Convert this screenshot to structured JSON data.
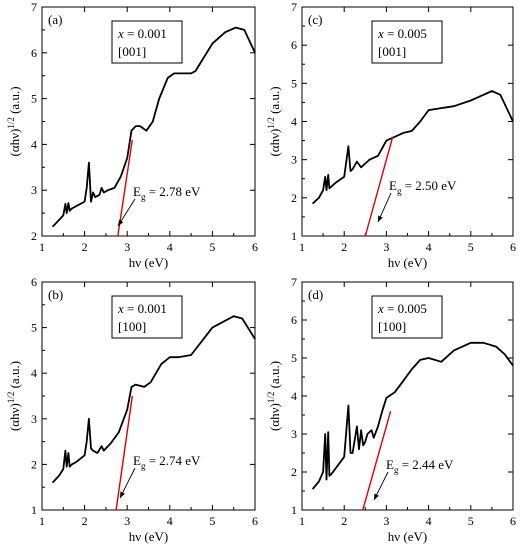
{
  "chart_data": [
    {
      "type": "line",
      "panel_label": "(a)",
      "composition": "x = 0.001",
      "direction": "[001]",
      "xlabel": "hν  (eV)",
      "ylabel": "(αhν)^1/2 (a.u.)",
      "xlim": [
        1,
        6
      ],
      "ylim": [
        2,
        7
      ],
      "xticks": [
        1,
        2,
        3,
        4,
        5,
        6
      ],
      "yticks": [
        2,
        3,
        4,
        5,
        6,
        7
      ],
      "eg_label": "E_g = 2.78 eV",
      "eg_value": 2.78,
      "fit_line": {
        "x": [
          2.78,
          3.12
        ],
        "y": [
          2.0,
          4.1
        ]
      },
      "series": [
        {
          "x": [
            1.25,
            1.4,
            1.5,
            1.55,
            1.58,
            1.62,
            1.65,
            1.68,
            1.7,
            1.8,
            2.0,
            2.05,
            2.1,
            2.15,
            2.2,
            2.25,
            2.35,
            2.4,
            2.45,
            2.55,
            2.7,
            2.85,
            3.0,
            3.1,
            3.2,
            3.3,
            3.45,
            3.6,
            3.75,
            3.95,
            4.1,
            4.5,
            4.6,
            4.8,
            5.0,
            5.3,
            5.55,
            5.75,
            6.0
          ],
          "y": [
            2.2,
            2.35,
            2.45,
            2.7,
            2.5,
            2.72,
            2.55,
            2.58,
            2.6,
            2.65,
            2.75,
            3.05,
            3.6,
            2.75,
            2.95,
            2.85,
            2.9,
            3.05,
            2.95,
            3.0,
            3.05,
            3.3,
            3.7,
            4.3,
            4.4,
            4.4,
            4.3,
            4.5,
            5.0,
            5.45,
            5.55,
            5.55,
            5.6,
            5.9,
            6.2,
            6.45,
            6.55,
            6.5,
            6.0
          ]
        }
      ]
    },
    {
      "type": "line",
      "panel_label": "(c)",
      "composition": "x = 0.005",
      "direction": "[001]",
      "xlabel": "hν  (eV)",
      "ylabel": "(αhν)^1/2 (a.u.)",
      "xlim": [
        1,
        6
      ],
      "ylim": [
        1,
        7
      ],
      "xticks": [
        1,
        2,
        3,
        4,
        5,
        6
      ],
      "yticks": [
        1,
        2,
        3,
        4,
        5,
        6,
        7
      ],
      "eg_label": "E_g = 2.50 eV",
      "eg_value": 2.5,
      "fit_line": {
        "x": [
          2.5,
          3.15
        ],
        "y": [
          1.0,
          3.6
        ]
      },
      "series": [
        {
          "x": [
            1.25,
            1.4,
            1.5,
            1.55,
            1.58,
            1.62,
            1.65,
            1.7,
            1.8,
            2.0,
            2.1,
            2.15,
            2.2,
            2.3,
            2.4,
            2.5,
            2.6,
            2.8,
            3.0,
            3.2,
            3.4,
            3.6,
            3.8,
            4.0,
            4.3,
            4.6,
            5.0,
            5.3,
            5.5,
            5.7,
            6.0
          ],
          "y": [
            1.85,
            2.0,
            2.2,
            2.55,
            2.2,
            2.6,
            2.25,
            2.3,
            2.4,
            2.55,
            3.35,
            2.7,
            2.75,
            2.95,
            2.8,
            2.9,
            3.0,
            3.1,
            3.5,
            3.6,
            3.7,
            3.75,
            4.0,
            4.3,
            4.35,
            4.4,
            4.55,
            4.7,
            4.8,
            4.7,
            4.0
          ]
        }
      ]
    },
    {
      "type": "line",
      "panel_label": "(b)",
      "composition": "x = 0.001",
      "direction": "[100]",
      "xlabel": "hν  (eV)",
      "ylabel": "(αhν)^1/2 (a.u.)",
      "xlim": [
        1,
        6
      ],
      "ylim": [
        1,
        6
      ],
      "xticks": [
        1,
        2,
        3,
        4,
        5,
        6
      ],
      "yticks": [
        1,
        2,
        3,
        4,
        5,
        6
      ],
      "eg_label": "E_g = 2.74 eV",
      "eg_value": 2.74,
      "fit_line": {
        "x": [
          2.74,
          3.12
        ],
        "y": [
          1.0,
          3.5
        ]
      },
      "series": [
        {
          "x": [
            1.25,
            1.4,
            1.5,
            1.55,
            1.58,
            1.62,
            1.65,
            1.7,
            1.8,
            2.0,
            2.05,
            2.1,
            2.15,
            2.2,
            2.3,
            2.4,
            2.45,
            2.5,
            2.6,
            2.8,
            3.0,
            3.1,
            3.2,
            3.4,
            3.55,
            3.8,
            4.0,
            4.2,
            4.5,
            5.0,
            5.5,
            5.7,
            6.0
          ],
          "y": [
            1.6,
            1.75,
            1.9,
            2.3,
            1.95,
            2.25,
            1.95,
            2.0,
            2.05,
            2.2,
            2.5,
            3.0,
            2.35,
            2.3,
            2.25,
            2.4,
            2.3,
            2.35,
            2.45,
            2.7,
            3.2,
            3.7,
            3.75,
            3.7,
            3.8,
            4.2,
            4.35,
            4.35,
            4.4,
            5.0,
            5.25,
            5.2,
            4.75
          ]
        }
      ]
    },
    {
      "type": "line",
      "panel_label": "(d)",
      "composition": "x = 0.005",
      "direction": "[100]",
      "xlabel": "hν  (eV)",
      "ylabel": "(αhν)^1/2 (a.u.)",
      "xlim": [
        1,
        6
      ],
      "ylim": [
        1,
        7
      ],
      "xticks": [
        1,
        2,
        3,
        4,
        5,
        6
      ],
      "yticks": [
        1,
        2,
        3,
        4,
        5,
        6,
        7
      ],
      "eg_label": "E_g = 2.44 eV",
      "eg_value": 2.44,
      "fit_line": {
        "x": [
          2.44,
          3.1
        ],
        "y": [
          1.0,
          3.6
        ]
      },
      "series": [
        {
          "x": [
            1.25,
            1.4,
            1.5,
            1.55,
            1.58,
            1.62,
            1.65,
            1.7,
            1.8,
            2.0,
            2.1,
            2.15,
            2.2,
            2.3,
            2.35,
            2.4,
            2.45,
            2.5,
            2.55,
            2.65,
            2.7,
            2.8,
            2.9,
            3.0,
            3.2,
            3.4,
            3.6,
            3.8,
            4.0,
            4.3,
            4.6,
            5.0,
            5.3,
            5.6,
            5.8,
            6.0
          ],
          "y": [
            1.55,
            1.75,
            2.0,
            3.0,
            1.8,
            3.05,
            1.9,
            1.95,
            2.1,
            2.4,
            3.75,
            2.5,
            2.5,
            3.2,
            2.6,
            3.1,
            2.7,
            2.8,
            3.0,
            3.1,
            2.9,
            3.2,
            3.6,
            3.95,
            4.1,
            4.4,
            4.7,
            4.95,
            5.0,
            4.9,
            5.2,
            5.4,
            5.4,
            5.3,
            5.1,
            4.8
          ]
        }
      ]
    }
  ]
}
